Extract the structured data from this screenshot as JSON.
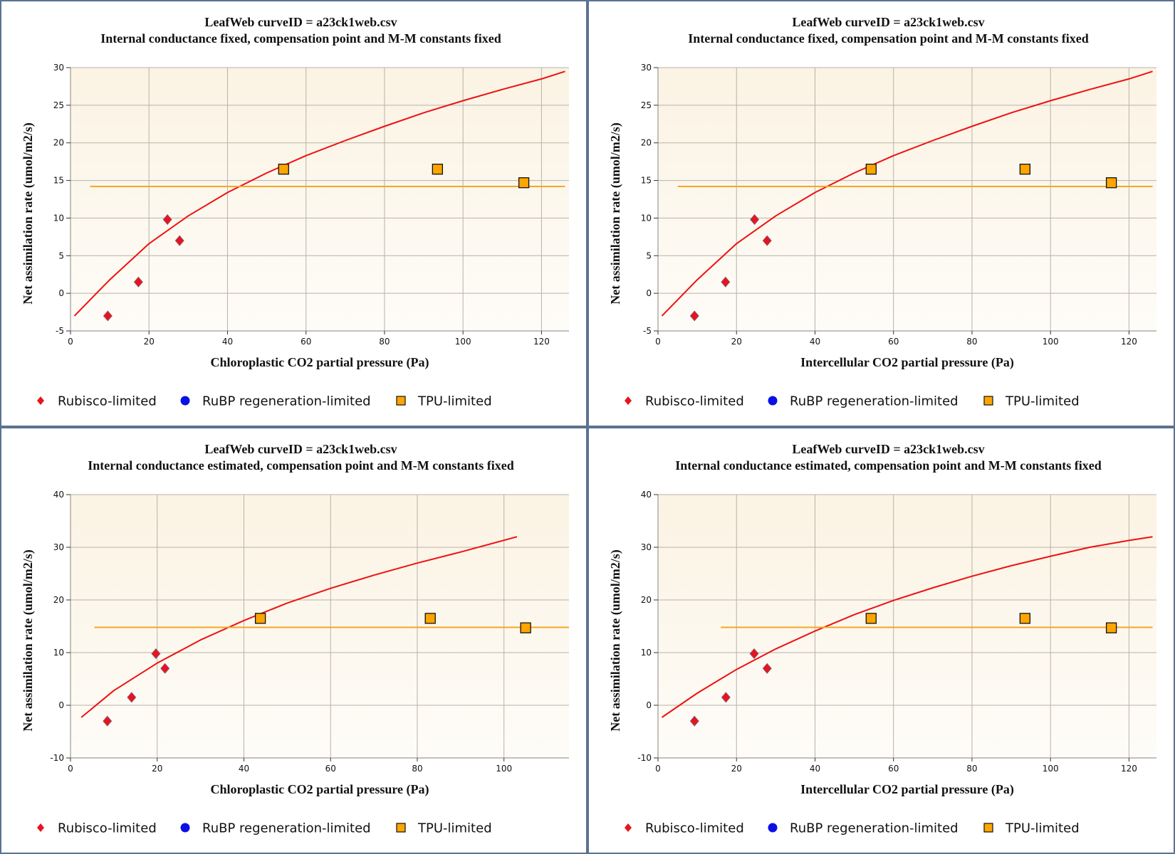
{
  "colors": {
    "rubisco": "#e8141c",
    "rubp": "#0a10e6",
    "tpu": "#ffa500",
    "curve": "#ee1111",
    "tpu_line": "#f5a623",
    "border": "#5b7291",
    "plot_bg_top": "#fbf3e3",
    "plot_bg_bottom": "#fefcf8",
    "grid": "#b8b2a8"
  },
  "legend": {
    "items": [
      {
        "label": "Rubisco-limited",
        "icon": "diamond-icon"
      },
      {
        "label": "RuBP regeneration-limited",
        "icon": "circle-icon"
      },
      {
        "label": "TPU-limited",
        "icon": "square-icon"
      }
    ]
  },
  "chart_data": [
    {
      "type": "scatter",
      "title": "LeafWeb curveID = a23ck1web.csv",
      "subtitle": "Internal conductance fixed, compensation point and M-M constants fixed",
      "xlabel": "Chloroplastic CO2 partial pressure (Pa)",
      "ylabel": "Net assimilation rate (umol/m2/s)",
      "xlim": [
        0,
        127
      ],
      "ylim": [
        -5,
        30
      ],
      "xticks": [
        0,
        20,
        40,
        60,
        80,
        100,
        120
      ],
      "yticks": [
        -5,
        0,
        5,
        10,
        15,
        20,
        25,
        30
      ],
      "grid": true,
      "legend_position": "bottom",
      "series": [
        {
          "name": "Rubisco-limited",
          "marker": "diamond",
          "points": [
            [
              9.5,
              -3.0
            ],
            [
              17.3,
              1.5
            ],
            [
              24.7,
              9.8
            ],
            [
              27.8,
              7.0
            ]
          ]
        },
        {
          "name": "RuBP regeneration-limited",
          "marker": "circle",
          "points": []
        },
        {
          "name": "TPU-limited",
          "marker": "square",
          "points": [
            [
              54.3,
              16.5
            ],
            [
              93.5,
              16.5
            ],
            [
              115.5,
              14.7
            ]
          ]
        }
      ],
      "curves": [
        {
          "name": "Rubisco-limited fit",
          "points": [
            [
              1,
              -3.0
            ],
            [
              10,
              1.8
            ],
            [
              20,
              6.6
            ],
            [
              30,
              10.3
            ],
            [
              40,
              13.4
            ],
            [
              50,
              16.0
            ],
            [
              60,
              18.3
            ],
            [
              70,
              20.3
            ],
            [
              80,
              22.2
            ],
            [
              90,
              24.0
            ],
            [
              100,
              25.6
            ],
            [
              110,
              27.1
            ],
            [
              120,
              28.5
            ],
            [
              126,
              29.5
            ]
          ]
        },
        {
          "name": "TPU-limited fit",
          "points": [
            [
              5,
              14.2
            ],
            [
              126,
              14.2
            ]
          ]
        }
      ]
    },
    {
      "type": "scatter",
      "title": "LeafWeb curveID = a23ck1web.csv",
      "subtitle": "Internal conductance fixed, compensation point and M-M constants fixed",
      "xlabel": "Intercellular CO2 partial pressure (Pa)",
      "ylabel": "Net assimilation rate (umol/m2/s)",
      "xlim": [
        0,
        127
      ],
      "ylim": [
        -5,
        30
      ],
      "xticks": [
        0,
        20,
        40,
        60,
        80,
        100,
        120
      ],
      "yticks": [
        -5,
        0,
        5,
        10,
        15,
        20,
        25,
        30
      ],
      "grid": true,
      "legend_position": "bottom",
      "series": [
        {
          "name": "Rubisco-limited",
          "marker": "diamond",
          "points": [
            [
              9.3,
              -3.0
            ],
            [
              17.2,
              1.5
            ],
            [
              24.6,
              9.8
            ],
            [
              27.8,
              7.0
            ]
          ]
        },
        {
          "name": "RuBP regeneration-limited",
          "marker": "circle",
          "points": []
        },
        {
          "name": "TPU-limited",
          "marker": "square",
          "points": [
            [
              54.3,
              16.5
            ],
            [
              93.5,
              16.5
            ],
            [
              115.5,
              14.7
            ]
          ]
        }
      ],
      "curves": [
        {
          "name": "Rubisco-limited fit",
          "points": [
            [
              1,
              -3.0
            ],
            [
              10,
              1.8
            ],
            [
              20,
              6.6
            ],
            [
              30,
              10.3
            ],
            [
              40,
              13.4
            ],
            [
              50,
              16.0
            ],
            [
              60,
              18.3
            ],
            [
              70,
              20.3
            ],
            [
              80,
              22.2
            ],
            [
              90,
              24.0
            ],
            [
              100,
              25.6
            ],
            [
              110,
              27.1
            ],
            [
              120,
              28.5
            ],
            [
              126,
              29.5
            ]
          ]
        },
        {
          "name": "TPU-limited fit",
          "points": [
            [
              5,
              14.2
            ],
            [
              126,
              14.2
            ]
          ]
        }
      ]
    },
    {
      "type": "scatter",
      "title": "LeafWeb curveID = a23ck1web.csv",
      "subtitle": "Internal conductance estimated, compensation point and M-M constants fixed",
      "xlabel": "Chloroplastic CO2 partial pressure (Pa)",
      "ylabel": "Net assimilation rate (umol/m2/s)",
      "xlim": [
        0,
        115
      ],
      "ylim": [
        -10,
        40
      ],
      "xticks": [
        0,
        20,
        40,
        60,
        80,
        100
      ],
      "yticks": [
        -10,
        0,
        10,
        20,
        30,
        40
      ],
      "grid": true,
      "legend_position": "bottom",
      "series": [
        {
          "name": "Rubisco-limited",
          "marker": "diamond",
          "points": [
            [
              8.5,
              -3.0
            ],
            [
              14.1,
              1.5
            ],
            [
              19.7,
              9.8
            ],
            [
              21.8,
              7.0
            ]
          ]
        },
        {
          "name": "RuBP regeneration-limited",
          "marker": "circle",
          "points": []
        },
        {
          "name": "TPU-limited",
          "marker": "square",
          "points": [
            [
              43.8,
              16.5
            ],
            [
              83.0,
              16.5
            ],
            [
              105.0,
              14.7
            ]
          ]
        }
      ],
      "curves": [
        {
          "name": "Rubisco-limited fit",
          "points": [
            [
              2.5,
              -2.3
            ],
            [
              10,
              2.8
            ],
            [
              20,
              8.0
            ],
            [
              30,
              12.4
            ],
            [
              40,
              16.1
            ],
            [
              50,
              19.4
            ],
            [
              60,
              22.2
            ],
            [
              70,
              24.7
            ],
            [
              80,
              27.0
            ],
            [
              90,
              29.1
            ],
            [
              103,
              32.0
            ]
          ]
        },
        {
          "name": "TPU-limited fit",
          "points": [
            [
              5.5,
              14.8
            ],
            [
              115,
              14.8
            ]
          ]
        }
      ]
    },
    {
      "type": "scatter",
      "title": "LeafWeb curveID = a23ck1web.csv",
      "subtitle": "Internal conductance estimated, compensation point and M-M constants fixed",
      "xlabel": "Intercellular CO2 partial pressure (Pa)",
      "ylabel": "Net assimilation rate (umol/m2/s)",
      "xlim": [
        0,
        127
      ],
      "ylim": [
        -10,
        40
      ],
      "xticks": [
        0,
        20,
        40,
        60,
        80,
        100,
        120
      ],
      "yticks": [
        -10,
        0,
        10,
        20,
        30,
        40
      ],
      "grid": true,
      "legend_position": "bottom",
      "series": [
        {
          "name": "Rubisco-limited",
          "marker": "diamond",
          "points": [
            [
              9.3,
              -3.0
            ],
            [
              17.3,
              1.5
            ],
            [
              24.5,
              9.8
            ],
            [
              27.8,
              7.0
            ]
          ]
        },
        {
          "name": "RuBP regeneration-limited",
          "marker": "circle",
          "points": []
        },
        {
          "name": "TPU-limited",
          "marker": "square",
          "points": [
            [
              54.3,
              16.5
            ],
            [
              93.5,
              16.5
            ],
            [
              115.5,
              14.7
            ]
          ]
        }
      ],
      "curves": [
        {
          "name": "Rubisco-limited fit",
          "points": [
            [
              1,
              -2.3
            ],
            [
              10,
              2.3
            ],
            [
              20,
              6.8
            ],
            [
              30,
              10.7
            ],
            [
              40,
              14.1
            ],
            [
              50,
              17.2
            ],
            [
              60,
              19.9
            ],
            [
              70,
              22.3
            ],
            [
              80,
              24.5
            ],
            [
              90,
              26.5
            ],
            [
              100,
              28.3
            ],
            [
              110,
              30.0
            ],
            [
              120,
              31.3
            ],
            [
              126,
              32.0
            ]
          ]
        },
        {
          "name": "TPU-limited fit",
          "points": [
            [
              16,
              14.8
            ],
            [
              126,
              14.8
            ]
          ]
        }
      ]
    }
  ]
}
